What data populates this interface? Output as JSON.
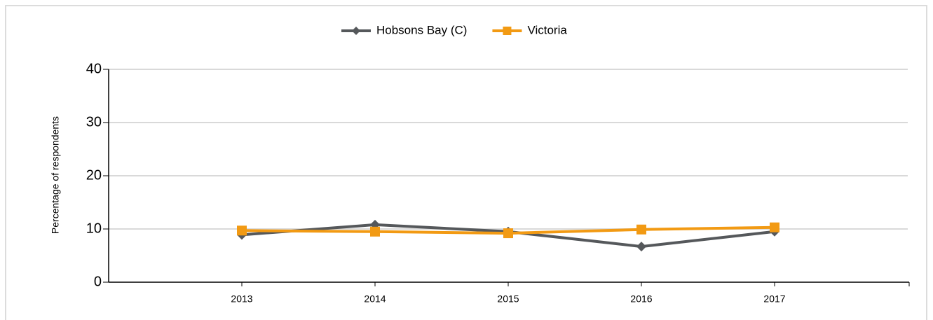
{
  "chart_data": {
    "type": "line",
    "y_label": "Percentage of respondents",
    "categories": [
      "2013",
      "2014",
      "2015",
      "2016",
      "2017"
    ],
    "series": [
      {
        "name": "Hobsons Bay (C)",
        "color": "#55585b",
        "marker": "diamond",
        "values": [
          8.9,
          10.8,
          9.5,
          6.7,
          9.5
        ]
      },
      {
        "name": "Victoria",
        "color": "#f29a13",
        "marker": "square",
        "values": [
          9.7,
          9.5,
          9.2,
          9.9,
          10.3
        ]
      }
    ],
    "ylim": [
      0,
      40
    ],
    "yticks": [
      0,
      10,
      20,
      30,
      40
    ],
    "grid": true
  }
}
